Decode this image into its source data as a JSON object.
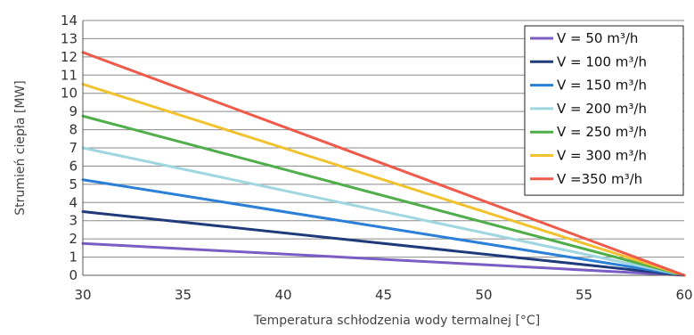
{
  "chart_data": {
    "type": "line",
    "title": "",
    "xlabel": "Temperatura schłodzenia wody termalnej [°C]",
    "ylabel": "Strumień ciepła [MW]",
    "xlim": [
      30,
      60
    ],
    "ylim": [
      0,
      14
    ],
    "x_ticks": [
      30,
      35,
      40,
      45,
      50,
      55,
      60
    ],
    "y_ticks": [
      0,
      1,
      2,
      3,
      4,
      5,
      6,
      7,
      8,
      9,
      10,
      11,
      12,
      13,
      14
    ],
    "grid": "horizontal",
    "legend_position": "top-right",
    "x": [
      30,
      60
    ],
    "series": [
      {
        "name": "V = 50 m³/h",
        "color": "#7b5cc4",
        "values": [
          1.75,
          0
        ]
      },
      {
        "name": "V = 100 m³/h",
        "color": "#1f3a7a",
        "values": [
          3.5,
          0
        ]
      },
      {
        "name": "V = 150 m³/h",
        "color": "#2a7fd6",
        "values": [
          5.25,
          0
        ]
      },
      {
        "name": "V = 200 m³/h",
        "color": "#9fd6df",
        "values": [
          7.0,
          0
        ]
      },
      {
        "name": "V = 250 m³/h",
        "color": "#4fae4a",
        "values": [
          8.75,
          0
        ]
      },
      {
        "name": "V = 300 m³/h",
        "color": "#f2c22e",
        "values": [
          10.5,
          0
        ]
      },
      {
        "name": "V =350 m³/h",
        "color": "#f05a4a",
        "values": [
          12.25,
          0
        ]
      }
    ]
  }
}
